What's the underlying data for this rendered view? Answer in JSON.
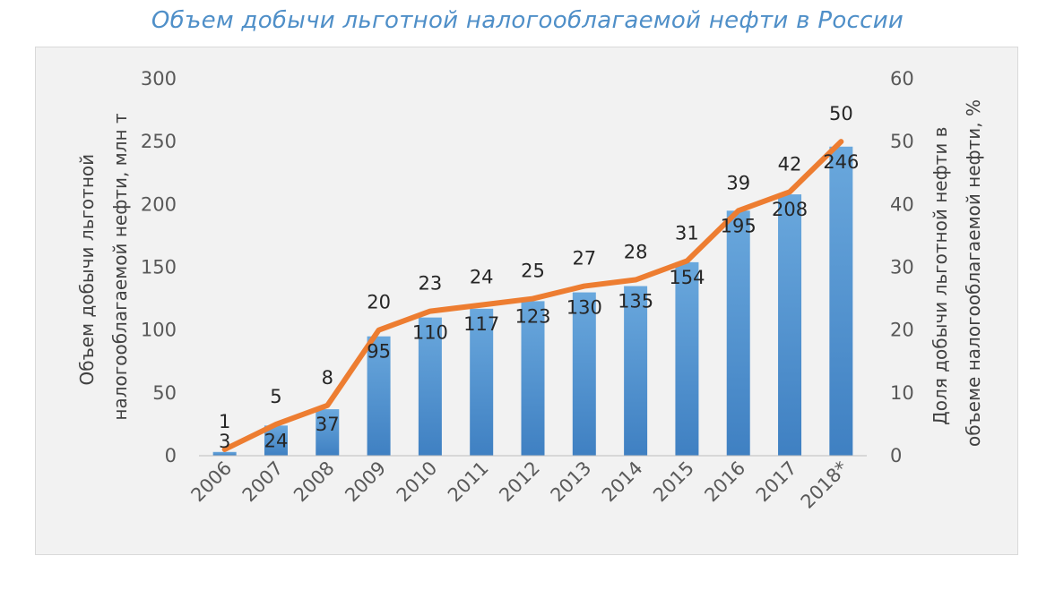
{
  "chart_data": {
    "type": "bar",
    "title": "Объем добычи льготной налогооблагаемой нефти в России",
    "categories": [
      "2006",
      "2007",
      "2008",
      "2009",
      "2010",
      "2011",
      "2012",
      "2013",
      "2014",
      "2015",
      "2016",
      "2017",
      "2018*"
    ],
    "series": [
      {
        "chart_type": "bar",
        "axis": "left",
        "color": "#5b9bd5",
        "values": [
          3,
          24,
          37,
          95,
          110,
          117,
          123,
          130,
          135,
          154,
          195,
          208,
          246
        ]
      },
      {
        "chart_type": "line",
        "axis": "right",
        "color": "#ed7d31",
        "values": [
          1,
          5,
          8,
          20,
          23,
          24,
          25,
          27,
          28,
          31,
          39,
          42,
          50
        ]
      }
    ],
    "y_left": {
      "label_line1": "Объем добычи льготной",
      "label_line2": "налогооблагаемой нефти, млн т",
      "lim": [
        0,
        300
      ],
      "ticks": [
        "0",
        "50",
        "100",
        "150",
        "200",
        "250",
        "300"
      ]
    },
    "y_right": {
      "label_line1": "Доля добычи льготной нефти в",
      "label_line2": "объеме налогооблагаемой нефти, %",
      "lim": [
        0,
        60
      ],
      "ticks": [
        "0",
        "10",
        "20",
        "30",
        "40",
        "50",
        "60"
      ]
    },
    "grid": false,
    "legend": "none"
  }
}
